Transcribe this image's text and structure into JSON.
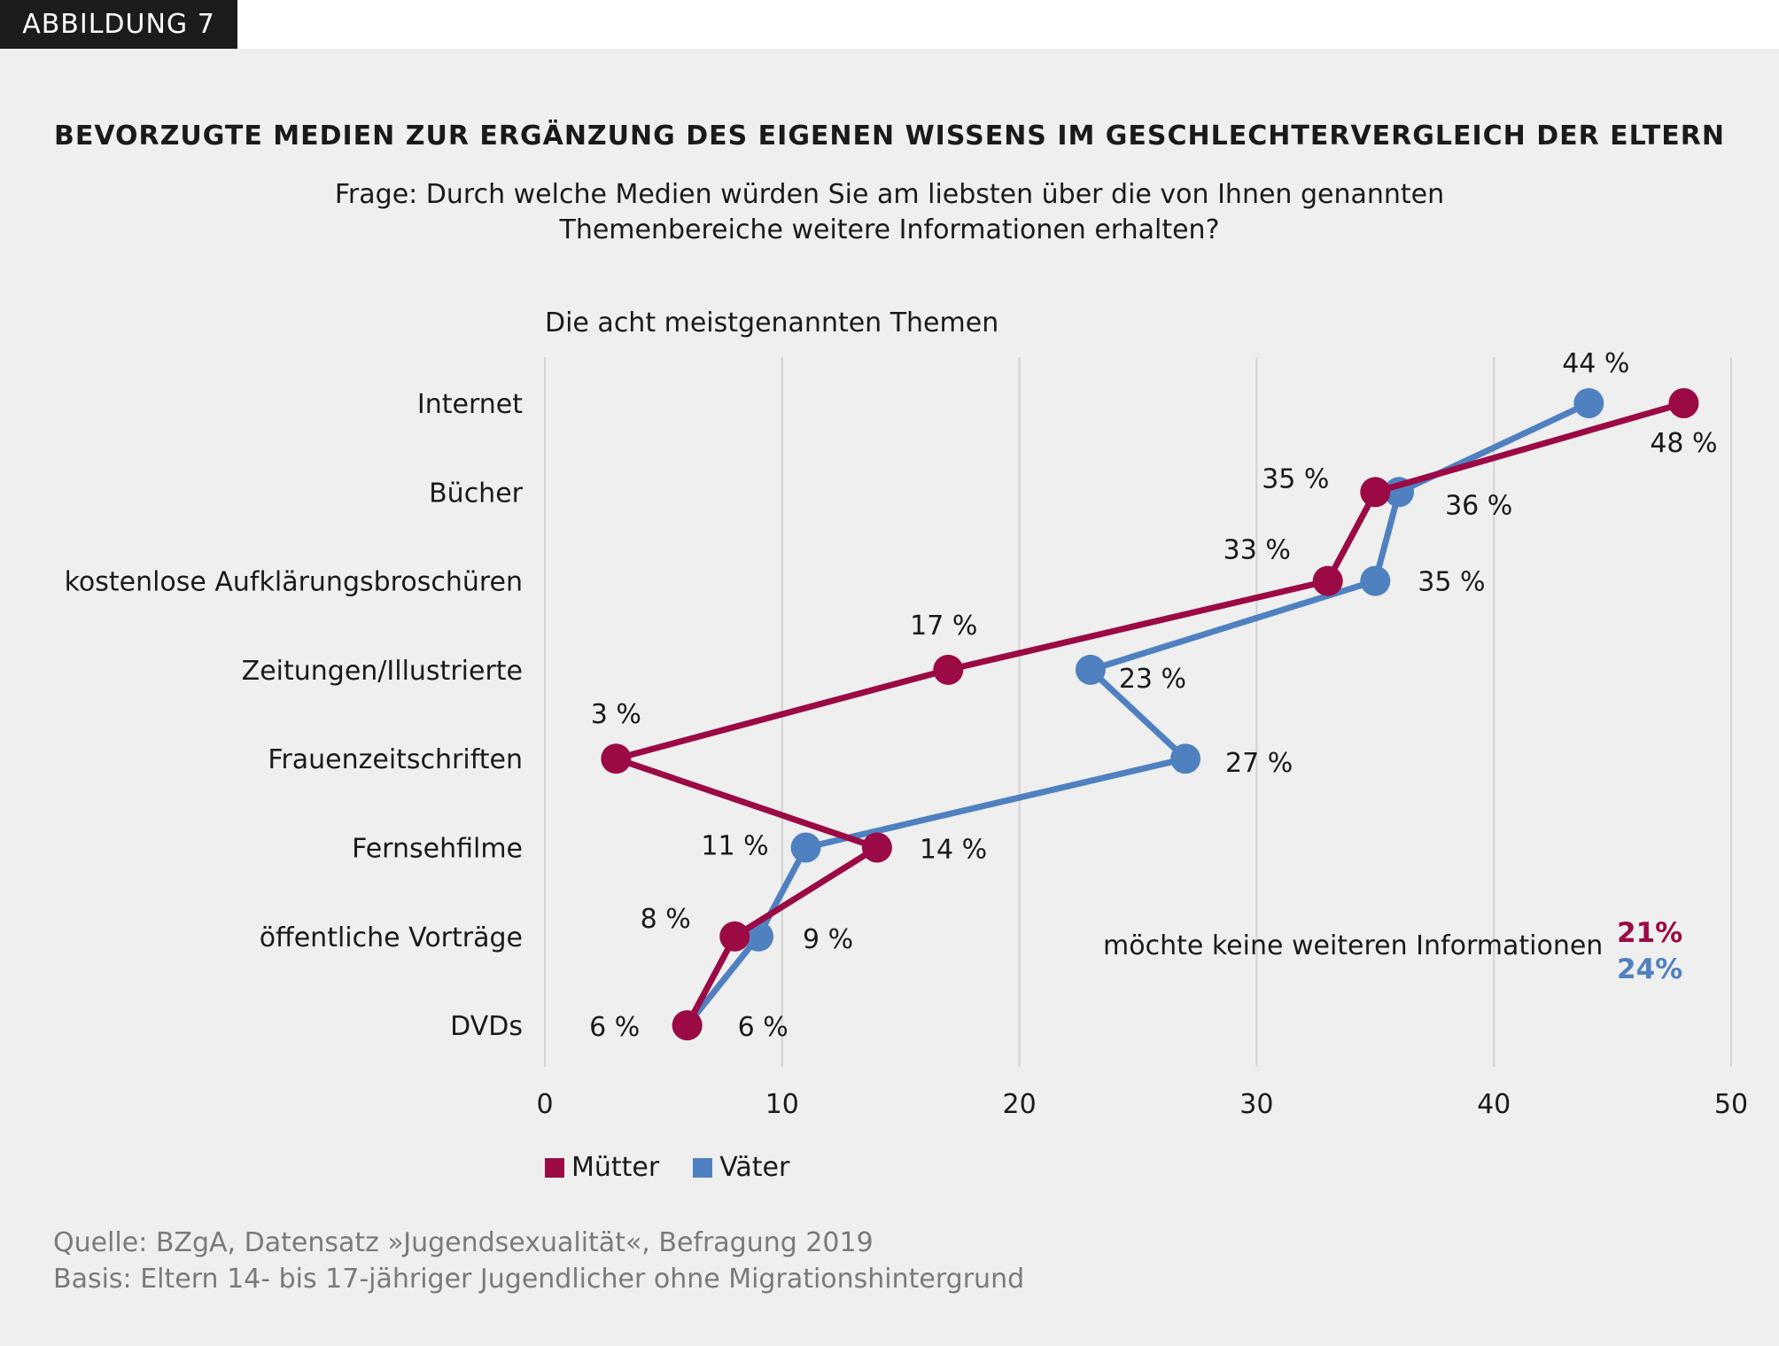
{
  "figure_label": "ABBILDUNG 7",
  "colors": {
    "muetter": "#9b0a45",
    "vaeter": "#4f81c0"
  },
  "chart_data": {
    "type": "line",
    "orientation": "horizontal",
    "title": "BEVORZUGTE MEDIEN ZUR ERGÄNZUNG DES EIGENEN WISSENS IM GESCHLECHTERVERGLEICH DER ELTERN",
    "subtitle": [
      "Frage: Durch welche Medien würden Sie am liebsten über die von Ihnen genannten",
      "Themenbereiche weitere Informationen erhalten?"
    ],
    "section_label": "Die acht meistgenannten Themen",
    "categories": [
      "Internet",
      "Bücher",
      "kostenlose Aufklärungsbroschüren",
      "Zeitungen/Illustrierte",
      "Frauenzeitschriften",
      "Fernsehfilme",
      "öffentliche Vorträge",
      "DVDs"
    ],
    "series": [
      {
        "name": "Mütter",
        "values": [
          48,
          35,
          33,
          17,
          3,
          14,
          8,
          6
        ],
        "labels": [
          "48 %",
          "35 %",
          "33 %",
          "17 %",
          "3 %",
          "14 %",
          "8 %",
          "6 %"
        ]
      },
      {
        "name": "Väter",
        "values": [
          44,
          36,
          35,
          23,
          27,
          11,
          9,
          6
        ],
        "labels": [
          "44 %",
          "36 %",
          "35 %",
          "23 %",
          "27 %",
          "11 %",
          "9 %",
          "6 %"
        ]
      }
    ],
    "xlim": [
      0,
      50
    ],
    "xticks": [
      "0",
      "10",
      "20",
      "30",
      "40",
      "50"
    ],
    "grid": true,
    "legend_position": "bottom-left"
  },
  "annotation": {
    "text": "möchte keine weiteren Informationen",
    "muetter": "21%",
    "vaeter": "24%"
  },
  "source": [
    "Quelle: BZgA, Datensatz »Jugendsexualität«, Befragung 2019",
    "Basis: Eltern 14- bis 17-jähriger Jugendlicher ohne Migrationshintergrund"
  ]
}
